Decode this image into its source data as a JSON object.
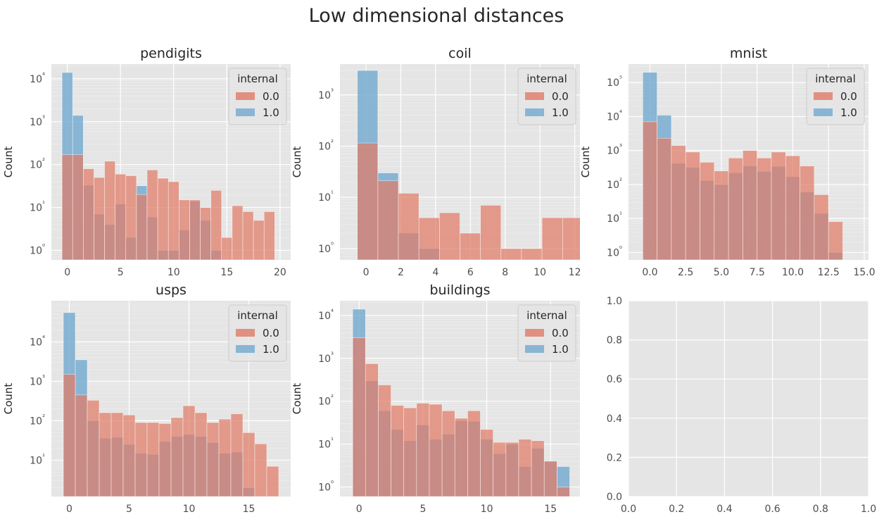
{
  "figure": {
    "title": "Low dimensional distances"
  },
  "colors": {
    "panel_bg": "#e5e5e5",
    "grid": "#ffffff",
    "internal_0": "#e07b67",
    "internal_1": "#72a9cf"
  },
  "chart_data": [
    {
      "type": "bar",
      "title": "pendigits",
      "ylabel": "Count",
      "yscale": "log",
      "ylim": [
        0.6,
        22000
      ],
      "yticks": [
        1,
        10,
        100,
        1000,
        10000
      ],
      "ytick_labels": [
        "10⁰",
        "10¹",
        "10²",
        "10³",
        "10⁴"
      ],
      "xlim": [
        -1.5,
        21
      ],
      "xticks": [
        0,
        5,
        10,
        15,
        20
      ],
      "xtick_labels": [
        "0",
        "5",
        "10",
        "15",
        "20"
      ],
      "legend": {
        "title": "internal",
        "placement": "top-right"
      },
      "bin_start": -0.5,
      "bin_width": 1.0,
      "series": [
        {
          "name": "0.0",
          "values": [
            170,
            170,
            80,
            50,
            120,
            60,
            55,
            20,
            75,
            48,
            40,
            15,
            15,
            10,
            25,
            2,
            11,
            8,
            5,
            8
          ]
        },
        {
          "name": "1.0",
          "values": [
            14000,
            1400,
            33,
            7,
            4,
            12,
            2,
            32,
            6,
            1,
            1,
            3,
            14,
            5,
            1,
            0,
            0,
            0,
            0,
            0
          ]
        }
      ]
    },
    {
      "type": "bar",
      "title": "coil",
      "ylabel": "Count",
      "yscale": "log",
      "ylim": [
        0.6,
        4000
      ],
      "yticks": [
        1,
        10,
        100,
        1000
      ],
      "ytick_labels": [
        "10⁰",
        "10¹",
        "10²",
        "10³"
      ],
      "xlim": [
        -1.5,
        12.3
      ],
      "xticks": [
        0,
        2,
        4,
        6,
        8,
        10,
        12
      ],
      "xtick_labels": [
        "0",
        "2",
        "4",
        "6",
        "8",
        "10",
        "12"
      ],
      "legend": {
        "title": "internal",
        "placement": "top-right"
      },
      "bin_start": -0.5,
      "bin_width": 1.18,
      "series": [
        {
          "name": "0.0",
          "values": [
            115,
            21,
            12,
            4,
            5,
            2,
            7,
            1,
            1,
            4,
            4
          ]
        },
        {
          "name": "1.0",
          "values": [
            3000,
            30,
            2,
            1,
            0,
            0,
            0,
            0,
            0,
            0,
            0
          ]
        }
      ]
    },
    {
      "type": "bar",
      "title": "mnist",
      "ylabel": "Count",
      "yscale": "log",
      "ylim": [
        0.6,
        350000
      ],
      "yticks": [
        1,
        10,
        100,
        1000,
        10000,
        100000
      ],
      "ytick_labels": [
        "10⁰",
        "10¹",
        "10²",
        "10³",
        "10⁴",
        "10⁵"
      ],
      "xlim": [
        -1.5,
        15.3
      ],
      "xticks": [
        0,
        2.5,
        5,
        7.5,
        10,
        12.5,
        15
      ],
      "xtick_labels": [
        "0.0",
        "2.5",
        "5.0",
        "7.5",
        "10.0",
        "12.5",
        "15.0"
      ],
      "legend": {
        "title": "internal",
        "placement": "top-right"
      },
      "bin_start": -0.5,
      "bin_width": 1.0,
      "series": [
        {
          "name": "0.0",
          "values": [
            7000,
            2300,
            1400,
            900,
            450,
            250,
            600,
            1000,
            600,
            900,
            700,
            350,
            50,
            8
          ]
        },
        {
          "name": "1.0",
          "values": [
            200000,
            11000,
            420,
            320,
            130,
            100,
            220,
            350,
            240,
            340,
            170,
            60,
            14,
            1
          ]
        }
      ]
    },
    {
      "type": "bar",
      "title": "usps",
      "ylabel": "Count",
      "yscale": "log",
      "ylim": [
        1.2,
        110000
      ],
      "yticks": [
        10,
        100,
        1000,
        10000
      ],
      "ytick_labels": [
        "10¹",
        "10²",
        "10³",
        "10⁴"
      ],
      "xlim": [
        -1.5,
        18.5
      ],
      "xticks": [
        0,
        5,
        10,
        15
      ],
      "xtick_labels": [
        "0",
        "5",
        "10",
        "15"
      ],
      "legend": {
        "title": "internal",
        "placement": "top-right"
      },
      "bin_start": -0.5,
      "bin_width": 1.0,
      "series": [
        {
          "name": "0.0",
          "values": [
            1500,
            450,
            330,
            160,
            160,
            140,
            90,
            90,
            85,
            120,
            240,
            160,
            90,
            110,
            150,
            50,
            26,
            7
          ]
        },
        {
          "name": "1.0",
          "values": [
            55000,
            3500,
            100,
            36,
            38,
            25,
            15,
            14,
            30,
            40,
            45,
            40,
            28,
            15,
            16,
            2,
            0,
            0
          ]
        }
      ]
    },
    {
      "type": "bar",
      "title": "buildings",
      "ylabel": "Count",
      "yscale": "log",
      "ylim": [
        0.6,
        22000
      ],
      "yticks": [
        1,
        10,
        100,
        1000,
        10000
      ],
      "ytick_labels": [
        "10⁰",
        "10¹",
        "10²",
        "10³",
        "10⁴"
      ],
      "xlim": [
        -1.5,
        17.3
      ],
      "xticks": [
        0,
        5,
        10,
        15
      ],
      "xtick_labels": [
        "0",
        "5",
        "10",
        "15"
      ],
      "legend": {
        "title": "internal",
        "placement": "top-right"
      },
      "bin_start": -0.5,
      "bin_width": 1.0,
      "series": [
        {
          "name": "0.0",
          "values": [
            3000,
            750,
            240,
            80,
            70,
            90,
            85,
            60,
            40,
            60,
            22,
            11,
            11,
            13,
            12,
            4,
            1
          ]
        },
        {
          "name": "1.0",
          "values": [
            14000,
            300,
            60,
            22,
            12,
            28,
            13,
            17,
            35,
            34,
            13,
            6,
            10,
            3,
            8,
            4,
            3
          ]
        }
      ]
    },
    {
      "type": "empty",
      "title": "",
      "xlim": [
        0,
        1
      ],
      "ylim": [
        0,
        1
      ],
      "xticks": [
        0,
        0.2,
        0.4,
        0.6,
        0.8,
        1
      ],
      "xtick_labels": [
        "0.0",
        "0.2",
        "0.4",
        "0.6",
        "0.8",
        "1.0"
      ],
      "yticks": [
        0,
        0.2,
        0.4,
        0.6,
        0.8,
        1
      ],
      "ytick_labels": [
        "0.0",
        "0.2",
        "0.4",
        "0.6",
        "0.8",
        "1.0"
      ]
    }
  ]
}
